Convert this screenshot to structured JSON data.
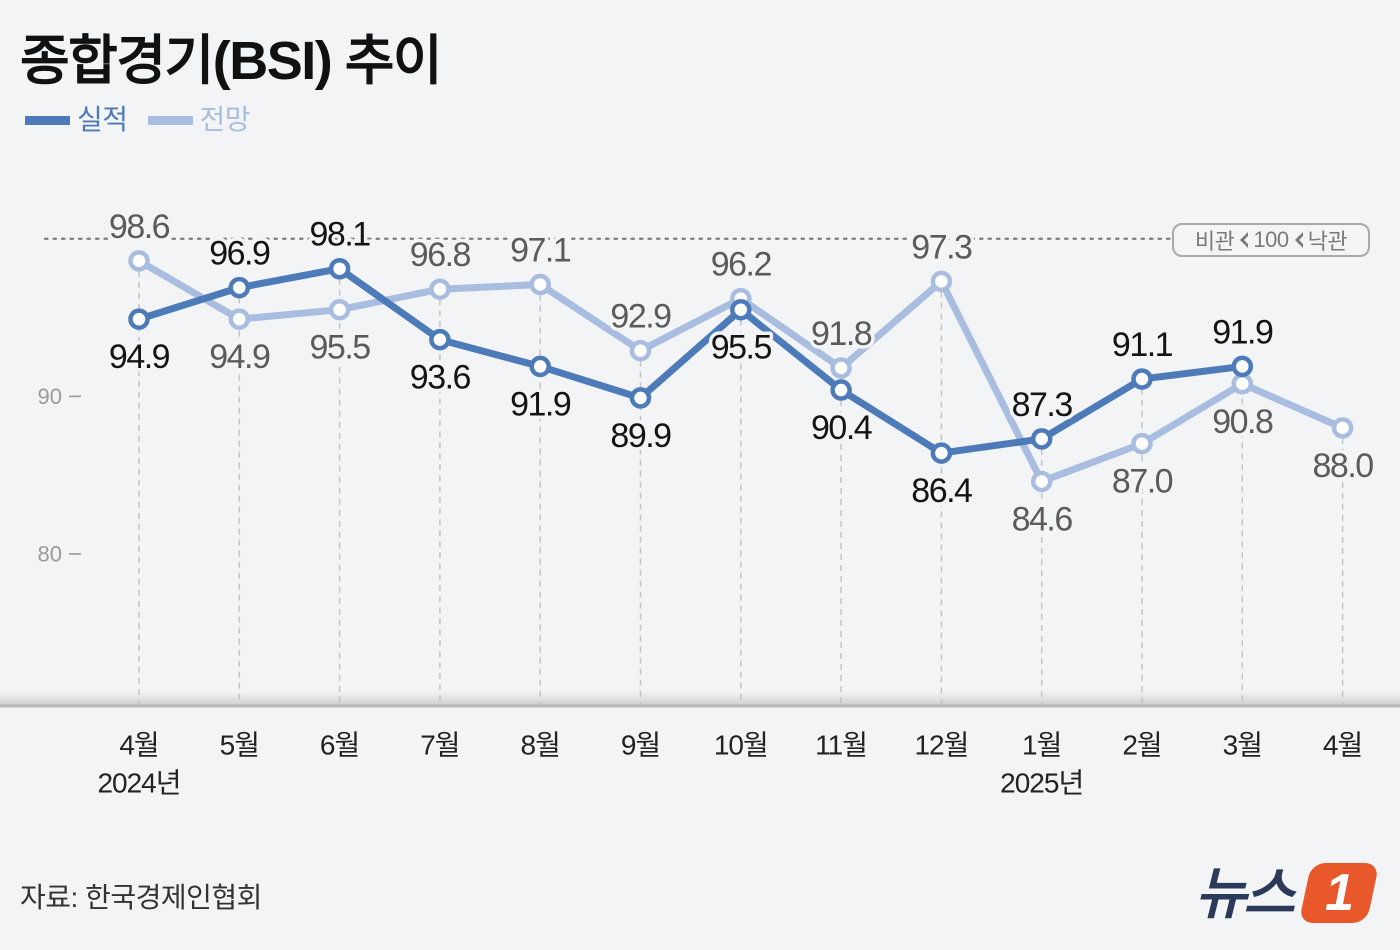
{
  "colors": {
    "background": "#f3f4f6"
  },
  "chart_data": {
    "type": "line",
    "title": "종합경기(BSI) 추이",
    "categories": [
      "4월",
      "5월",
      "6월",
      "7월",
      "8월",
      "9월",
      "10월",
      "11월",
      "12월",
      "1월",
      "2월",
      "3월",
      "4월"
    ],
    "category_years": [
      "2024년",
      "",
      "",
      "",
      "",
      "",
      "",
      "",
      "",
      "2025년",
      "",
      "",
      ""
    ],
    "series": [
      {
        "name": "실적",
        "color": "#4d7ab8",
        "values": [
          94.9,
          96.9,
          98.1,
          93.6,
          91.9,
          89.9,
          95.5,
          90.4,
          86.4,
          87.3,
          91.1,
          91.9,
          null
        ]
      },
      {
        "name": "전망",
        "color": "#a8bddf",
        "values": [
          98.6,
          94.9,
          95.5,
          96.8,
          97.1,
          92.9,
          96.2,
          91.8,
          97.3,
          84.6,
          87.0,
          90.8,
          88.0
        ]
      }
    ],
    "yticks": [
      90,
      80
    ],
    "ylim": [
      70,
      105
    ],
    "reference_line": {
      "value": 100,
      "left_label": "비관",
      "right_label": "낙관",
      "style": "dotted"
    },
    "grid": "vertical-dashed",
    "legend_position": "top-left"
  },
  "source": "자료: 한국경제인협회",
  "logo": {
    "text": "뉴스",
    "number": "1",
    "text_color": "#2b3a58",
    "accent_color": "#e9582b"
  }
}
